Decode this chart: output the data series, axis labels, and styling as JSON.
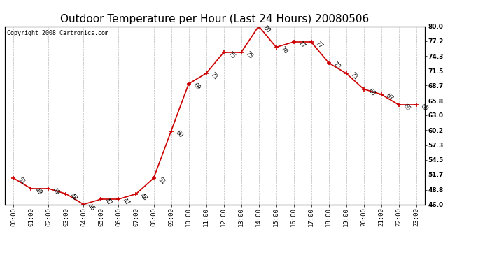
{
  "title": "Outdoor Temperature per Hour (Last 24 Hours) 20080506",
  "copyright": "Copyright 2008 Cartronics.com",
  "hours": [
    "00:00",
    "01:00",
    "02:00",
    "03:00",
    "04:00",
    "05:00",
    "06:00",
    "07:00",
    "08:00",
    "09:00",
    "10:00",
    "11:00",
    "12:00",
    "13:00",
    "14:00",
    "15:00",
    "16:00",
    "17:00",
    "18:00",
    "19:00",
    "20:00",
    "21:00",
    "22:00",
    "23:00"
  ],
  "temps": [
    51,
    49,
    49,
    48,
    46,
    47,
    47,
    48,
    51,
    60,
    69,
    71,
    75,
    75,
    80,
    76,
    77,
    77,
    73,
    71,
    68,
    67,
    65,
    65
  ],
  "ylim": [
    46,
    80
  ],
  "yticks_right": [
    46.0,
    48.8,
    51.7,
    54.5,
    57.3,
    60.2,
    63.0,
    65.8,
    68.7,
    71.5,
    74.3,
    77.2,
    80.0
  ],
  "line_color": "#cc0000",
  "marker": "+",
  "marker_size": 5,
  "grid_color": "#bbbbbb",
  "bg_color": "#ffffff",
  "title_fontsize": 11,
  "label_fontsize": 6.5,
  "annot_fontsize": 6,
  "copyright_fontsize": 6
}
